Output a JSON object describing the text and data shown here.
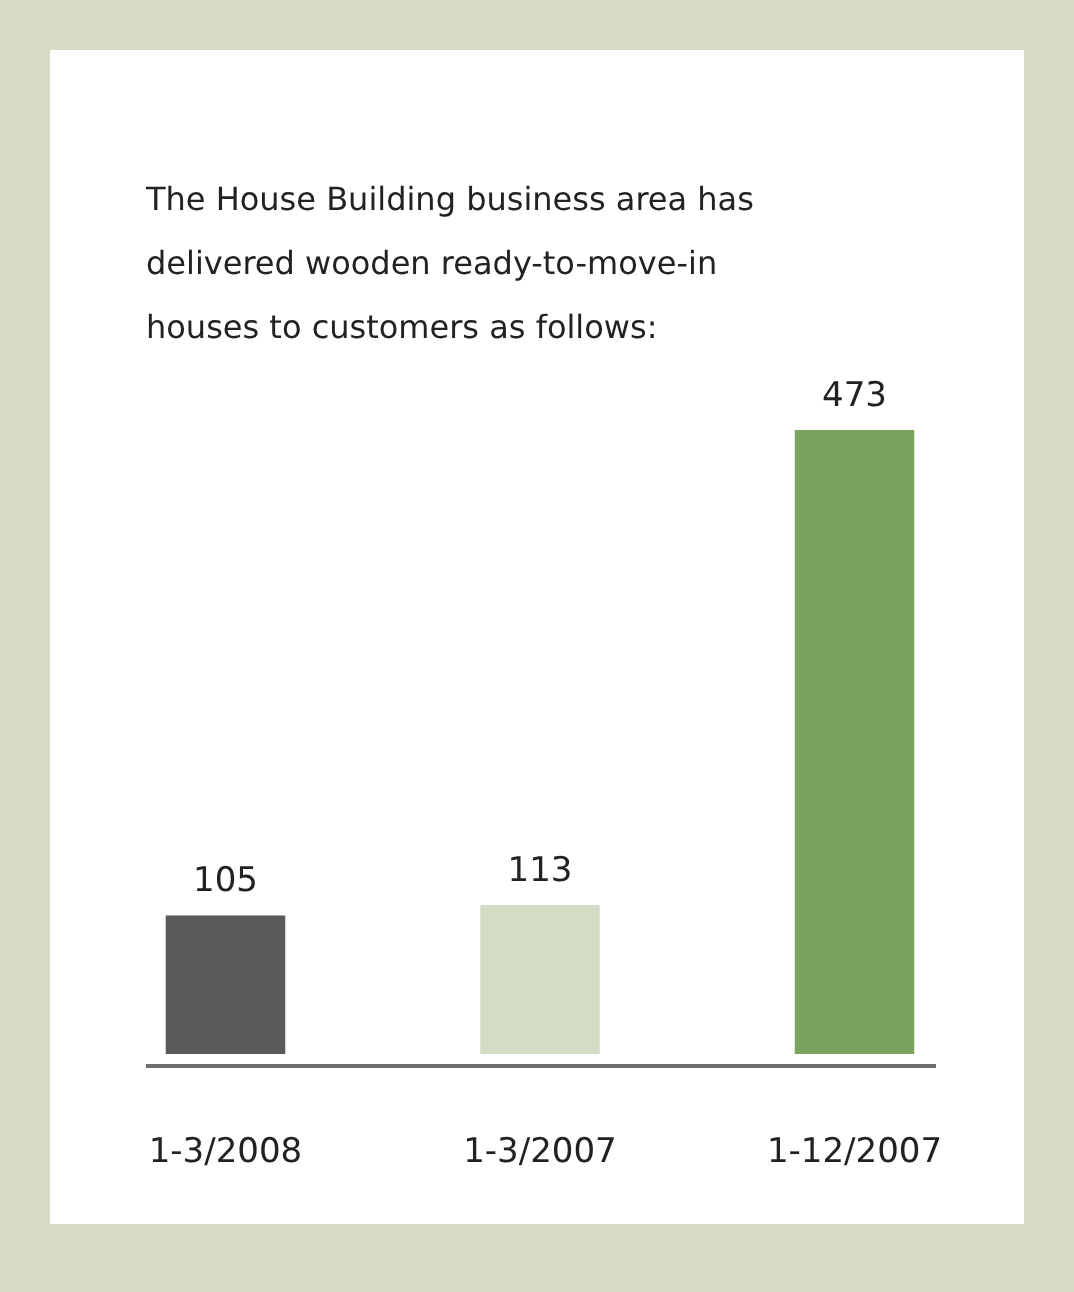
{
  "chart_data": {
    "type": "bar",
    "title": "The House Building business area has delivered wooden ready-to-move-in houses to customers as follows:",
    "categories": [
      "1-3/2008",
      "1-3/2007",
      "1-12/2007"
    ],
    "values": [
      105,
      113,
      473
    ],
    "colors": [
      "#58595b",
      "#d5dcc6",
      "#7ba35e"
    ],
    "data_labels": true
  }
}
